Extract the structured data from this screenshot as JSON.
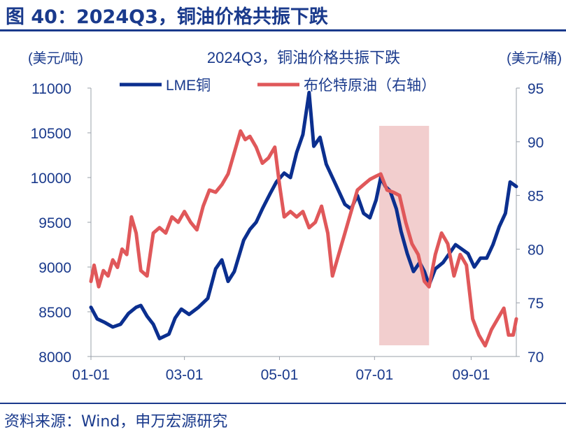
{
  "figure_title": "图 40：2024Q3，铜油价格共振下跌",
  "source": "资料来源：Wind，申万宏源研究",
  "colors": {
    "brand": "#1a3a8c",
    "copper": "#0b2f8f",
    "oil": "#e0585a",
    "band": "#f0c6c6"
  },
  "chart_data": {
    "type": "line",
    "title": "2024Q3，铜油价格共振下跌",
    "y_left_unit": "(美元/吨)",
    "y_right_unit": "(美元/桶)",
    "ylim_left": [
      8000,
      11000
    ],
    "ylim_right": [
      70,
      95
    ],
    "y_left_ticks": [
      "8000",
      "8500",
      "9000",
      "9500",
      "10000",
      "10500",
      "11000"
    ],
    "y_right_ticks": [
      "70",
      "75",
      "80",
      "85",
      "90",
      "95"
    ],
    "x_ticks": [
      "01-01",
      "03-01",
      "05-01",
      "07-01",
      "09-01"
    ],
    "x_tick_dates": [
      "2024-01-01",
      "2024-03-01",
      "2024-05-01",
      "2024-07-01",
      "2024-09-01"
    ],
    "x_range": [
      "2024-01-01",
      "2024-09-30"
    ],
    "highlight": {
      "from": "2024-07-04",
      "to": "2024-08-05"
    },
    "series": [
      {
        "name": "LME铜",
        "axis": "left",
        "points": [
          [
            "2024-01-01",
            8550
          ],
          [
            "2024-01-05",
            8420
          ],
          [
            "2024-01-10",
            8380
          ],
          [
            "2024-01-15",
            8330
          ],
          [
            "2024-01-20",
            8360
          ],
          [
            "2024-01-25",
            8480
          ],
          [
            "2024-01-30",
            8550
          ],
          [
            "2024-02-02",
            8570
          ],
          [
            "2024-02-06",
            8450
          ],
          [
            "2024-02-10",
            8360
          ],
          [
            "2024-02-14",
            8200
          ],
          [
            "2024-02-20",
            8250
          ],
          [
            "2024-02-24",
            8430
          ],
          [
            "2024-02-28",
            8530
          ],
          [
            "2024-03-04",
            8470
          ],
          [
            "2024-03-10",
            8550
          ],
          [
            "2024-03-16",
            8650
          ],
          [
            "2024-03-21",
            8980
          ],
          [
            "2024-03-25",
            9080
          ],
          [
            "2024-03-29",
            8840
          ],
          [
            "2024-04-02",
            8950
          ],
          [
            "2024-04-08",
            9300
          ],
          [
            "2024-04-12",
            9420
          ],
          [
            "2024-04-16",
            9500
          ],
          [
            "2024-04-20",
            9650
          ],
          [
            "2024-04-25",
            9820
          ],
          [
            "2024-04-29",
            9950
          ],
          [
            "2024-05-04",
            10050
          ],
          [
            "2024-05-08",
            10000
          ],
          [
            "2024-05-12",
            10280
          ],
          [
            "2024-05-16",
            10480
          ],
          [
            "2024-05-20",
            10950
          ],
          [
            "2024-05-23",
            10350
          ],
          [
            "2024-05-27",
            10450
          ],
          [
            "2024-05-31",
            10150
          ],
          [
            "2024-06-04",
            10000
          ],
          [
            "2024-06-08",
            9850
          ],
          [
            "2024-06-12",
            9700
          ],
          [
            "2024-06-16",
            9650
          ],
          [
            "2024-06-20",
            9800
          ],
          [
            "2024-06-24",
            9600
          ],
          [
            "2024-06-28",
            9550
          ],
          [
            "2024-07-02",
            9750
          ],
          [
            "2024-07-05",
            10000
          ],
          [
            "2024-07-08",
            9900
          ],
          [
            "2024-07-11",
            9850
          ],
          [
            "2024-07-15",
            9650
          ],
          [
            "2024-07-18",
            9400
          ],
          [
            "2024-07-22",
            9150
          ],
          [
            "2024-07-26",
            8950
          ],
          [
            "2024-07-30",
            9050
          ],
          [
            "2024-08-02",
            8950
          ],
          [
            "2024-08-05",
            8800
          ],
          [
            "2024-08-09",
            8980
          ],
          [
            "2024-08-14",
            9050
          ],
          [
            "2024-08-18",
            9150
          ],
          [
            "2024-08-22",
            9250
          ],
          [
            "2024-08-26",
            9200
          ],
          [
            "2024-08-30",
            9150
          ],
          [
            "2024-09-03",
            9000
          ],
          [
            "2024-09-07",
            9100
          ],
          [
            "2024-09-11",
            9100
          ],
          [
            "2024-09-15",
            9250
          ],
          [
            "2024-09-19",
            9450
          ],
          [
            "2024-09-23",
            9600
          ],
          [
            "2024-09-26",
            9950
          ],
          [
            "2024-09-30",
            9900
          ]
        ]
      },
      {
        "name": "布伦特原油（右轴）",
        "axis": "right",
        "points": [
          [
            "2024-01-01",
            77.0
          ],
          [
            "2024-01-03",
            78.5
          ],
          [
            "2024-01-06",
            76.5
          ],
          [
            "2024-01-09",
            78.0
          ],
          [
            "2024-01-12",
            77.5
          ],
          [
            "2024-01-15",
            79.0
          ],
          [
            "2024-01-18",
            78.3
          ],
          [
            "2024-01-21",
            80.0
          ],
          [
            "2024-01-24",
            79.5
          ],
          [
            "2024-01-27",
            83.0
          ],
          [
            "2024-01-30",
            81.5
          ],
          [
            "2024-02-02",
            78.0
          ],
          [
            "2024-02-06",
            77.5
          ],
          [
            "2024-02-10",
            81.5
          ],
          [
            "2024-02-14",
            82.0
          ],
          [
            "2024-02-18",
            81.5
          ],
          [
            "2024-02-22",
            83.0
          ],
          [
            "2024-02-26",
            82.5
          ],
          [
            "2024-03-01",
            83.5
          ],
          [
            "2024-03-05",
            82.5
          ],
          [
            "2024-03-09",
            81.8
          ],
          [
            "2024-03-13",
            84.0
          ],
          [
            "2024-03-17",
            85.5
          ],
          [
            "2024-03-21",
            85.3
          ],
          [
            "2024-03-25",
            86.0
          ],
          [
            "2024-03-29",
            87.0
          ],
          [
            "2024-04-02",
            89.0
          ],
          [
            "2024-04-06",
            91.0
          ],
          [
            "2024-04-09",
            90.2
          ],
          [
            "2024-04-12",
            90.5
          ],
          [
            "2024-04-16",
            89.5
          ],
          [
            "2024-04-20",
            88.0
          ],
          [
            "2024-04-24",
            88.5
          ],
          [
            "2024-04-28",
            89.5
          ],
          [
            "2024-05-01",
            86.0
          ],
          [
            "2024-05-04",
            83.0
          ],
          [
            "2024-05-08",
            83.5
          ],
          [
            "2024-05-12",
            83.0
          ],
          [
            "2024-05-16",
            83.5
          ],
          [
            "2024-05-20",
            82.0
          ],
          [
            "2024-05-24",
            82.5
          ],
          [
            "2024-05-28",
            84.0
          ],
          [
            "2024-06-01",
            81.5
          ],
          [
            "2024-06-04",
            77.5
          ],
          [
            "2024-06-08",
            79.5
          ],
          [
            "2024-06-12",
            81.5
          ],
          [
            "2024-06-16",
            83.5
          ],
          [
            "2024-06-20",
            85.5
          ],
          [
            "2024-06-24",
            86.0
          ],
          [
            "2024-06-28",
            86.5
          ],
          [
            "2024-07-02",
            86.8
          ],
          [
            "2024-07-05",
            87.0
          ],
          [
            "2024-07-09",
            85.5
          ],
          [
            "2024-07-13",
            85.3
          ],
          [
            "2024-07-17",
            85.0
          ],
          [
            "2024-07-21",
            82.5
          ],
          [
            "2024-07-25",
            80.5
          ],
          [
            "2024-07-29",
            79.5
          ],
          [
            "2024-08-02",
            77.0
          ],
          [
            "2024-08-05",
            76.5
          ],
          [
            "2024-08-09",
            79.5
          ],
          [
            "2024-08-13",
            81.5
          ],
          [
            "2024-08-17",
            80.5
          ],
          [
            "2024-08-21",
            77.5
          ],
          [
            "2024-08-25",
            79.5
          ],
          [
            "2024-08-29",
            78.5
          ],
          [
            "2024-09-02",
            73.5
          ],
          [
            "2024-09-06",
            72.0
          ],
          [
            "2024-09-10",
            71.0
          ],
          [
            "2024-09-14",
            72.5
          ],
          [
            "2024-09-18",
            73.5
          ],
          [
            "2024-09-22",
            74.5
          ],
          [
            "2024-09-25",
            72.0
          ],
          [
            "2024-09-28",
            72.0
          ],
          [
            "2024-09-30",
            73.5
          ]
        ]
      }
    ]
  }
}
